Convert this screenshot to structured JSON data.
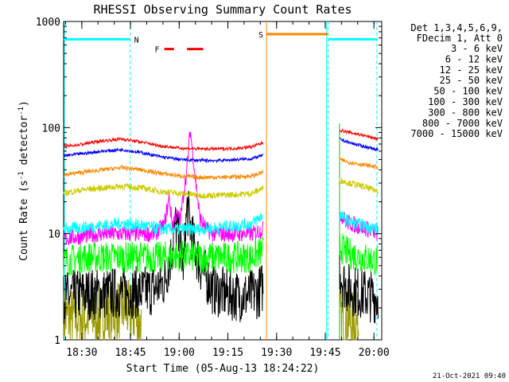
{
  "chart_data": {
    "type": "line",
    "title": "RHESSI Observing Summary Count Rates",
    "xlabel": "Start Time (05-Aug-13 18:24:22)",
    "ylabel": "Count Rate (s⁻¹ detector⁻¹)",
    "ylabel_main": "Count Rate (s",
    "ylabel_exp": "-1",
    "ylabel_mid": " detector",
    "ylabel_end": ")",
    "yscale": "log",
    "ylim": [
      1,
      1000
    ],
    "xlim_minutes": [
      0,
      98
    ],
    "x_ticks": [
      {
        "label": "18:30",
        "minutes": 5.6
      },
      {
        "label": "18:45",
        "minutes": 20.6
      },
      {
        "label": "19:00",
        "minutes": 35.6
      },
      {
        "label": "19:15",
        "minutes": 50.6
      },
      {
        "label": "19:30",
        "minutes": 65.6
      },
      {
        "label": "19:45",
        "minutes": 80.6
      },
      {
        "label": "20:00",
        "minutes": 95.6
      }
    ],
    "y_ticks": [
      {
        "label": "1",
        "value": 1
      },
      {
        "label": "10",
        "value": 10
      },
      {
        "label": "100",
        "value": 100
      },
      {
        "label": "1000",
        "value": 1000
      }
    ],
    "legend_header": [
      "Det 1,3,4,5,6,9,",
      "FDecim 1, Att 0"
    ],
    "series": [
      {
        "name": "3 - 6 keV",
        "color": "#000000",
        "x": [
          0,
          6,
          12,
          18,
          24,
          28,
          31,
          33,
          34.5,
          36,
          37,
          38,
          40,
          42,
          46,
          50,
          54,
          57,
          60,
          61.5
        ],
        "values": [
          2.5,
          2.7,
          2.7,
          2.8,
          2.8,
          3.0,
          3.5,
          6,
          12,
          7,
          5,
          18,
          8,
          5,
          3.0,
          2.7,
          2.6,
          2.6,
          2.8,
          3.2
        ],
        "x2": [
          85,
          86,
          88,
          91,
          94,
          97
        ],
        "values2": [
          5,
          3.5,
          3.0,
          2.8,
          2.6,
          2.5
        ],
        "noise": 0.25
      },
      {
        "name": "6 - 12 keV",
        "color": "#ff00ff",
        "x": [
          0,
          6,
          12,
          18,
          24,
          28,
          31,
          32.5,
          33.5,
          34.5,
          36,
          37,
          38,
          39,
          40,
          41,
          42,
          44,
          46,
          50,
          54,
          58,
          61.5
        ],
        "values": [
          9,
          9.5,
          10,
          10,
          10,
          10,
          12,
          22,
          12,
          15,
          14,
          25,
          40,
          95,
          50,
          25,
          14,
          11,
          10,
          10,
          10,
          10,
          11
        ],
        "x2": [
          85,
          87,
          90,
          94,
          97
        ],
        "values2": [
          16,
          13,
          12,
          11,
          10
        ],
        "noise": 0.08
      },
      {
        "name": "12 - 25 keV",
        "color": "#00ff00",
        "x": [
          0,
          6,
          12,
          18,
          24,
          30,
          36,
          42,
          48,
          54,
          58,
          61.5
        ],
        "values": [
          5.5,
          6,
          6,
          6,
          6,
          6,
          6.2,
          6,
          6,
          6,
          6,
          7
        ],
        "x2": [
          85,
          88,
          92,
          97
        ],
        "values2": [
          7.5,
          6.5,
          6,
          5.5
        ],
        "noise": 0.15
      },
      {
        "name": "25 - 50 keV",
        "color": "#00ffff",
        "x": [
          0,
          6,
          12,
          18,
          24,
          30,
          36,
          42,
          48,
          54,
          58,
          61.5
        ],
        "values": [
          11,
          11.5,
          12,
          12.5,
          12,
          11,
          11,
          11,
          11.5,
          12,
          12.5,
          15
        ],
        "x2": [
          85,
          88,
          92,
          97
        ],
        "values2": [
          15,
          13,
          12,
          11
        ],
        "noise": 0.06
      },
      {
        "name": "50 - 100 keV",
        "color": "#cccc00",
        "x": [
          0,
          6,
          12,
          18,
          24,
          30,
          36,
          42,
          48,
          54,
          58,
          61.5
        ],
        "values": [
          24,
          26,
          27,
          28,
          27,
          25,
          24,
          23,
          23,
          23.5,
          24,
          27
        ],
        "x2": [
          85,
          88,
          92,
          97
        ],
        "values2": [
          32,
          30,
          28,
          25
        ],
        "noise": 0.03
      },
      {
        "name": "100 - 300 keV",
        "color": "#ff0000",
        "x": [
          0,
          6,
          12,
          18,
          24,
          30,
          36,
          42,
          48,
          54,
          58,
          61.5
        ],
        "values": [
          66,
          70,
          75,
          78,
          73,
          67,
          64,
          63,
          63,
          64,
          66,
          72
        ],
        "x2": [
          85,
          88,
          92,
          97
        ],
        "values2": [
          95,
          90,
          85,
          78
        ],
        "noise": 0.015
      },
      {
        "name": "300 - 800 keV",
        "color": "#0000ff",
        "x": [
          0,
          6,
          12,
          18,
          24,
          30,
          36,
          42,
          48,
          54,
          58,
          61.5
        ],
        "values": [
          54,
          57,
          60,
          62,
          58,
          53,
          50,
          49,
          49,
          50,
          51,
          55
        ],
        "x2": [
          85,
          88,
          92,
          97
        ],
        "values2": [
          78,
          72,
          67,
          62
        ],
        "noise": 0.015
      },
      {
        "name": "800 - 7000 keV",
        "color": "#ff8800",
        "x": [
          0,
          6,
          12,
          18,
          24,
          30,
          36,
          42,
          48,
          54,
          58,
          61.5
        ],
        "values": [
          36,
          38,
          40,
          42,
          40,
          37,
          35,
          34,
          34,
          34.5,
          35,
          38
        ],
        "x2": [
          85,
          88,
          92,
          97
        ],
        "values2": [
          50,
          47,
          45,
          42
        ],
        "noise": 0.02
      },
      {
        "name": "7000 - 15000 keV",
        "color": "#999900",
        "x": [
          0,
          6,
          12,
          18,
          22,
          24
        ],
        "values": [
          1.6,
          1.6,
          1.7,
          2.0,
          1.7,
          1.3
        ],
        "x2": [
          85,
          88,
          91
        ],
        "values2": [
          1.6,
          1.5,
          1.4
        ],
        "noise": 0.3
      }
    ],
    "shading": [
      {
        "label": "",
        "color": "#00ffff",
        "start_min": 0,
        "end_min": 20.5,
        "level": 680
      },
      {
        "label": "N",
        "color": "#00ffff",
        "start_min": 20.5,
        "end_min": 20.5,
        "level": 680
      },
      {
        "label": "S",
        "color": "#ff8800",
        "start_min": 62.5,
        "end_min": 81.5,
        "level": 760
      },
      {
        "label": "",
        "color": "#00ffff",
        "start_min": 81.5,
        "end_min": 96.5,
        "level": 680
      }
    ],
    "flare_label": "F",
    "flare_color": "#ff0000",
    "flare_segments": [
      [
        31,
        34
      ],
      [
        38,
        43
      ]
    ],
    "flare_level": 550,
    "sun_label": "S",
    "night_label": "N",
    "dashed_lines_min": [
      20.5,
      81.5,
      96.5
    ],
    "orange_line_min": 62.5,
    "cyan_line_min": 81.0,
    "green_line_min": 85.0,
    "timestamp": "21-Oct-2021 09:40"
  }
}
